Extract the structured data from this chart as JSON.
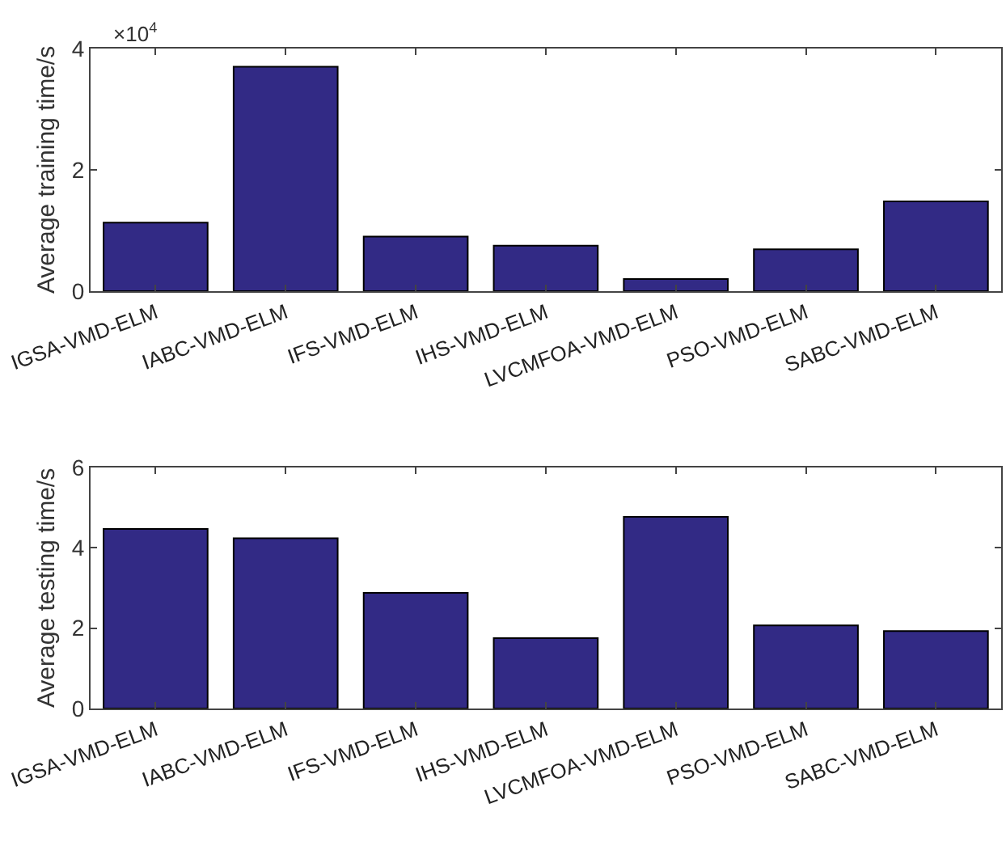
{
  "chart_data": [
    {
      "type": "bar",
      "ylabel": "Average training time/s",
      "categories": [
        "IGSA-VMD-ELM",
        "IABC-VMD-ELM",
        "IFS-VMD-ELM",
        "IHS-VMD-ELM",
        "LVCMFOA-VMD-ELM",
        "PSO-VMD-ELM",
        "SABC-VMD-ELM"
      ],
      "series": [
        {
          "color": "#322a85",
          "values": [
            1.13,
            3.7,
            0.9,
            0.75,
            0.2,
            0.69,
            1.48
          ]
        }
      ],
      "ylim": [
        0,
        4
      ],
      "yticks": [
        0,
        2,
        4
      ],
      "annotations": [
        "×10$^{4}$"
      ]
    },
    {
      "type": "bar",
      "ylabel": "Average testing time/s",
      "categories": [
        "IGSA-VMD-ELM",
        "IABC-VMD-ELM",
        "IFS-VMD-ELM",
        "IHS-VMD-ELM",
        "LVCMFOA-VMD-ELM",
        "PSO-VMD-ELM",
        "SABC-VMD-ELM"
      ],
      "series": [
        {
          "color": "#322a85",
          "values": [
            4.47,
            4.24,
            2.88,
            1.75,
            4.77,
            2.07,
            1.93
          ]
        }
      ],
      "ylim": [
        0,
        6
      ],
      "yticks": [
        0,
        2,
        4,
        6
      ]
    }
  ]
}
